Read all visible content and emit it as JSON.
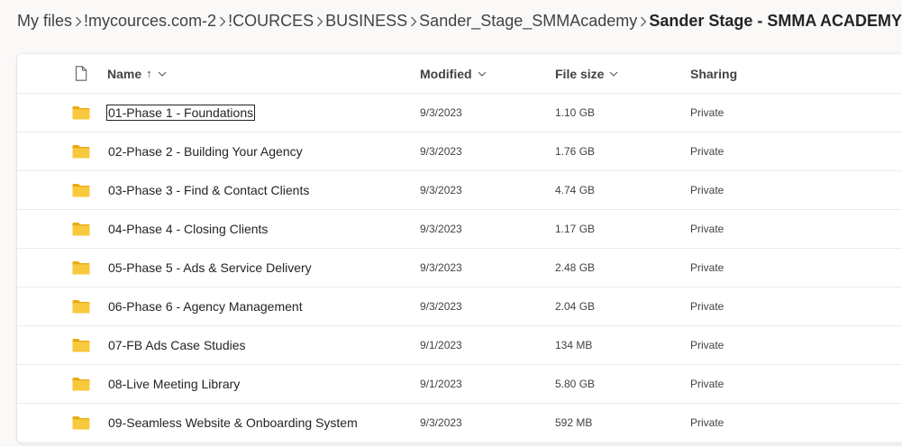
{
  "breadcrumb": [
    {
      "label": "My files"
    },
    {
      "label": "!mycources.com-2"
    },
    {
      "label": "!COURCES"
    },
    {
      "label": "BUSINESS"
    },
    {
      "label": "Sander_Stage_SMMAcademy"
    },
    {
      "label": "Sander Stage - SMMA ACADEMY"
    }
  ],
  "columns": {
    "name": "Name",
    "name_sort": "↑",
    "modified": "Modified",
    "size": "File size",
    "sharing": "Sharing"
  },
  "colors": {
    "folder": "#f8c93c",
    "folder_back": "#e8a911"
  },
  "rows": [
    {
      "name": "01-Phase 1 - Foundations",
      "modified": "9/3/2023",
      "size": "1.10 GB",
      "sharing": "Private"
    },
    {
      "name": "02-Phase 2 - Building Your Agency",
      "modified": "9/3/2023",
      "size": "1.76 GB",
      "sharing": "Private"
    },
    {
      "name": "03-Phase 3 - Find & Contact Clients",
      "modified": "9/3/2023",
      "size": "4.74 GB",
      "sharing": "Private"
    },
    {
      "name": "04-Phase 4 - Closing Clients",
      "modified": "9/3/2023",
      "size": "1.17 GB",
      "sharing": "Private"
    },
    {
      "name": "05-Phase 5 - Ads & Service Delivery",
      "modified": "9/3/2023",
      "size": "2.48 GB",
      "sharing": "Private"
    },
    {
      "name": "06-Phase 6 - Agency Management",
      "modified": "9/3/2023",
      "size": "2.04 GB",
      "sharing": "Private"
    },
    {
      "name": "07-FB Ads Case Studies",
      "modified": "9/1/2023",
      "size": "134 MB",
      "sharing": "Private"
    },
    {
      "name": "08-Live Meeting Library",
      "modified": "9/1/2023",
      "size": "5.80 GB",
      "sharing": "Private"
    },
    {
      "name": "09-Seamless Website & Onboarding System",
      "modified": "9/3/2023",
      "size": "592 MB",
      "sharing": "Private"
    }
  ]
}
